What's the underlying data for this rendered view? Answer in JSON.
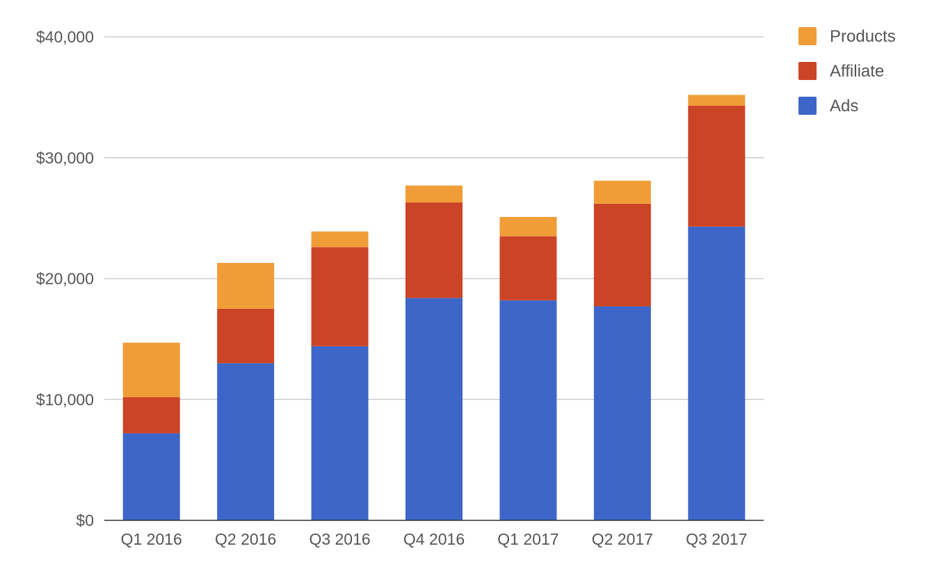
{
  "chart_data": {
    "type": "bar",
    "stacked": true,
    "categories": [
      "Q1 2016",
      "Q2 2016",
      "Q3 2016",
      "Q4 2016",
      "Q1 2017",
      "Q2 2017",
      "Q3 2017"
    ],
    "series": [
      {
        "name": "Ads",
        "color": "#3d66c8",
        "values": [
          7200,
          13000,
          14400,
          18400,
          18200,
          17700,
          24300
        ]
      },
      {
        "name": "Affiliate",
        "color": "#cc4426",
        "values": [
          3000,
          4500,
          8200,
          7900,
          5300,
          8500,
          10000
        ]
      },
      {
        "name": "Products",
        "color": "#f09d38",
        "values": [
          4500,
          3800,
          1300,
          1400,
          1600,
          1900,
          900
        ]
      }
    ],
    "y_ticks": [
      "$0",
      "$10,000",
      "$20,000",
      "$30,000",
      "$40,000"
    ],
    "y_tick_values": [
      0,
      10000,
      20000,
      30000,
      40000
    ],
    "ylim": [
      0,
      40000
    ],
    "grid": true,
    "legend_position": "top-right",
    "legend_order": [
      "Products",
      "Affiliate",
      "Ads"
    ]
  }
}
